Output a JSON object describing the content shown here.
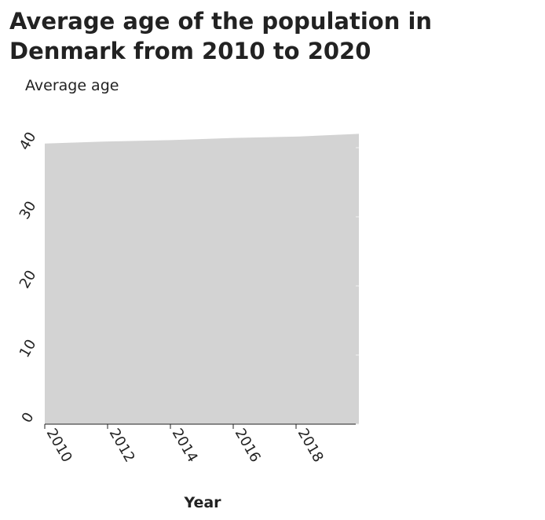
{
  "chart_data": {
    "type": "area",
    "title": "Average age of the population in Denmark from 2010 to 2020",
    "xlabel": "Year",
    "ylabel": "Average age",
    "x": [
      2010,
      2012,
      2014,
      2016,
      2018,
      2020
    ],
    "xticks": [
      "2010",
      "2012",
      "2014",
      "2016",
      "2018"
    ],
    "yticks": [
      "0",
      "10",
      "20",
      "30",
      "40"
    ],
    "series": [
      {
        "values": [
          40.6,
          40.9,
          41.1,
          41.4,
          41.6,
          42.0
        ]
      }
    ],
    "xlim": [
      2010,
      2020
    ],
    "ylim": [
      0,
      40
    ],
    "grid": false,
    "legend": "none",
    "fill_color": "#d3d3d3"
  }
}
